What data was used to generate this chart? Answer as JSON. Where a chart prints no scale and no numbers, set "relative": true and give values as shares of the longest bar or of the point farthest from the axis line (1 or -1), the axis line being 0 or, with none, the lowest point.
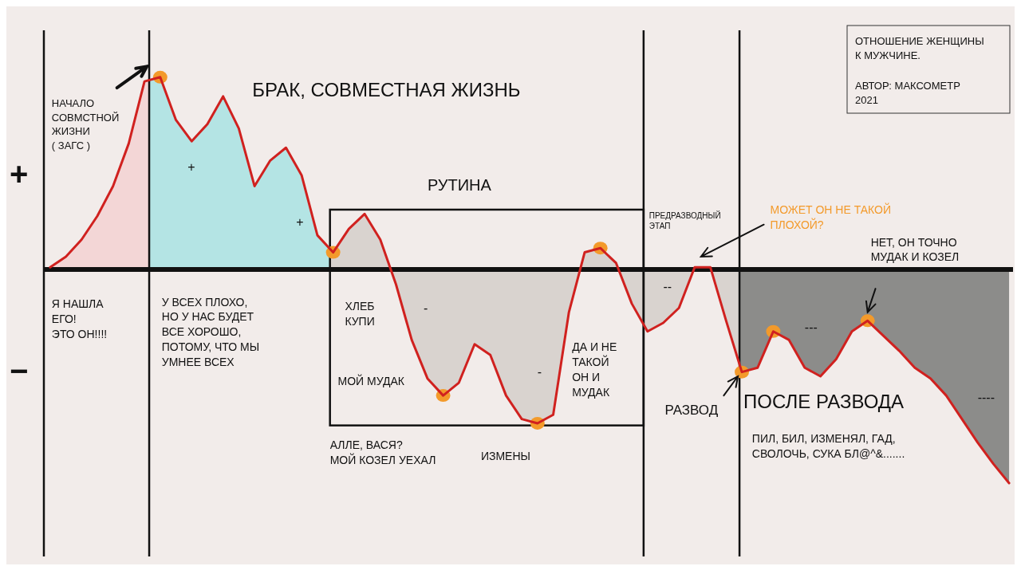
{
  "chart_data": {
    "type": "line",
    "title": "ОТНОШЕНИЕ ЖЕНЩИНЫ К МУЖЧИНЕ.",
    "subtitle": "АВТОР: МАКСОМЕТР 2021",
    "relative": true,
    "categories": [
      null,
      null,
      null,
      null,
      null,
      null,
      null,
      null,
      null,
      null,
      null,
      null,
      null,
      null,
      null,
      null,
      null,
      null,
      null,
      null,
      null,
      null,
      null,
      null,
      null,
      null,
      null,
      null,
      null,
      null,
      null,
      null,
      null,
      null,
      null,
      null,
      null,
      null,
      null,
      null,
      null,
      null,
      null,
      null,
      null,
      null,
      null,
      null,
      null,
      null,
      null,
      null,
      null,
      null,
      null,
      null,
      null,
      null,
      null,
      null,
      null,
      null
    ],
    "series": [
      {
        "color": "#d0211f",
        "values": [
          0.01,
          0.06,
          0.14,
          0.25,
          0.39,
          0.59,
          0.88,
          0.9,
          0.7,
          0.6,
          0.68,
          0.81,
          0.66,
          0.39,
          0.51,
          0.57,
          0.44,
          0.16,
          0.08,
          0.19,
          0.26,
          0.14,
          -0.07,
          -0.33,
          -0.51,
          -0.59,
          -0.53,
          -0.35,
          -0.4,
          -0.59,
          -0.7,
          -0.72,
          -0.68,
          -0.2,
          0.08,
          0.1,
          0.03,
          -0.16,
          -0.29,
          -0.25,
          -0.18,
          0.01,
          0.01,
          -0.24,
          -0.48,
          -0.46,
          -0.29,
          -0.33,
          -0.46,
          -0.5,
          -0.42,
          -0.29,
          -0.24,
          -0.31,
          -0.38,
          -0.46,
          -0.51,
          -0.59,
          -0.7,
          -0.81,
          -0.91,
          -1
        ]
      }
    ],
    "annotations": [
      "+",
      "−",
      "НАЧАЛО\nСОВМСТНОЙ\nЖИЗНИ\n( ЗАГС )",
      "БРАК, СОВМЕСТНАЯ ЖИЗНЬ",
      "+",
      "+",
      "РУТИНА",
      "ХЛЕБ\nКУПИ",
      "-",
      "-",
      "МОЙ МУДАК",
      "АЛЛЕ, ВАСЯ?\nМОЙ КОЗЕЛ УЕХАЛ",
      "ИЗМЕНЫ",
      "ДА И НЕ\nТАКОЙ\nОН И\nМУДАК",
      "ПРЕДРАЗВОДНЫЙ\nЭТАП",
      "--",
      "МОЖЕТ ОН НЕ ТАКОЙ\nПЛОХОЙ?",
      "НЕТ, ОН ТОЧНО\nМУДАК И КОЗЕЛ",
      "Я НАШЛА\nЕГО!\nЭТО ОН!!!!",
      "У ВСЕХ ПЛОХО,\nНО У НАС БУДЕТ\nВСЕ ХОРОШО,\nПОТОМУ, ЧТО МЫ\nУМНЕЕ ВСЕХ",
      "РАЗВОД",
      "ПОСЛЕ РАЗВОДА",
      "ПИЛ, БИЛ, ИЗМЕНЯЛ, ГАД,\nСВОЛОЧЬ, СУКА БЛ@^&.......",
      "---",
      "----"
    ]
  }
}
